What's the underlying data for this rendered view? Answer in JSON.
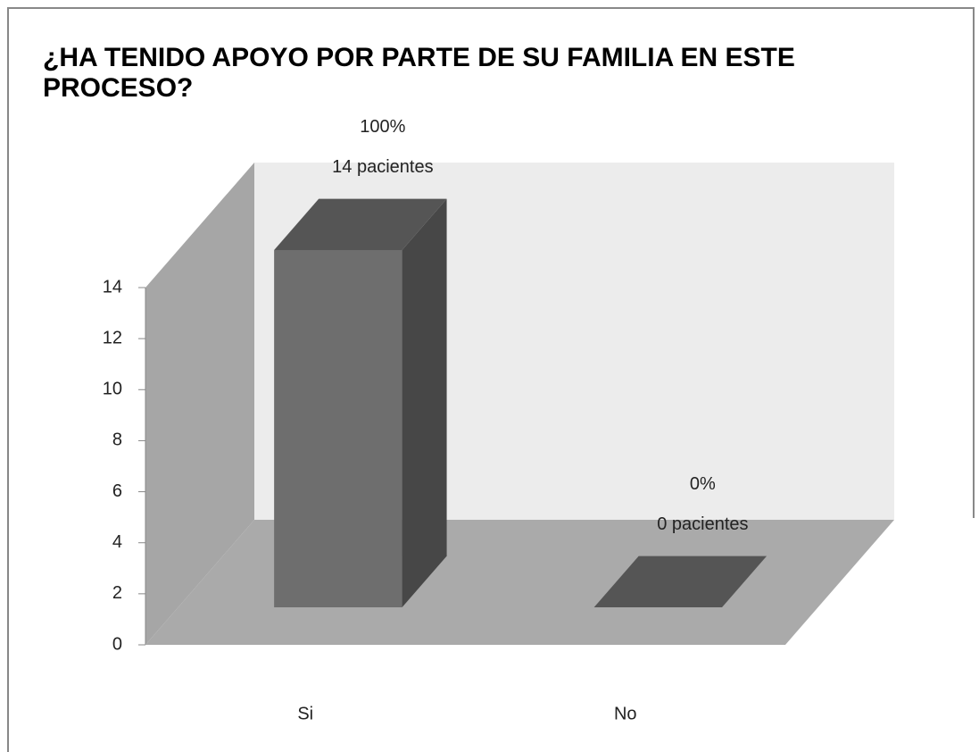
{
  "chart_data": {
    "type": "bar3d",
    "title": "¿HA TENIDO APOYO POR PARTE DE SU FAMILIA EN ESTE PROCESO?",
    "categories": [
      "Si",
      "No"
    ],
    "values": [
      14,
      0
    ],
    "value_labels": [
      "14 pacientes",
      "0 pacientes"
    ],
    "percent_labels": [
      "100%",
      "0%"
    ],
    "color": "#6e6e6e",
    "ylim": [
      0,
      14
    ],
    "yticks": [
      0,
      2,
      4,
      6,
      8,
      10,
      12,
      14
    ],
    "grid": false
  }
}
